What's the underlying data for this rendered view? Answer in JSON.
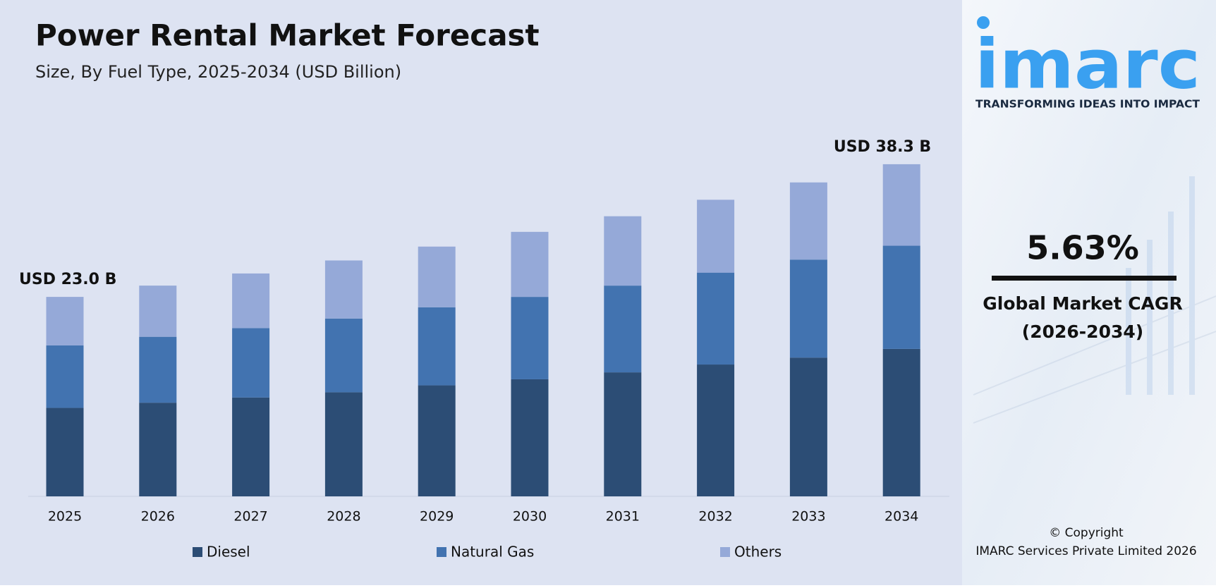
{
  "chart_data": {
    "type": "stacked_bar",
    "title": "Power Rental Market Forecast",
    "subtitle": "Size, By Fuel Type, 2025-2034 (USD Billion)",
    "categories": [
      "2025",
      "2026",
      "2027",
      "2028",
      "2029",
      "2030",
      "2031",
      "2032",
      "2033",
      "2034"
    ],
    "series": [
      {
        "name": "Diesel",
        "color": "#2c4d75",
        "values": [
          10.2,
          10.8,
          11.4,
          12.0,
          12.8,
          13.5,
          14.3,
          15.2,
          16.0,
          17.0
        ]
      },
      {
        "name": "Natural Gas",
        "color": "#4273b0",
        "values": [
          7.2,
          7.6,
          8.0,
          8.5,
          9.0,
          9.5,
          10.0,
          10.6,
          11.3,
          11.9
        ]
      },
      {
        "name": "Others",
        "color": "#95a9d8",
        "values": [
          5.6,
          5.9,
          6.3,
          6.7,
          7.0,
          7.5,
          8.0,
          8.4,
          8.9,
          9.4
        ]
      }
    ],
    "annotations": [
      {
        "x": "2025",
        "value": 23.0,
        "label": "USD 23.0 B"
      },
      {
        "x": "2034",
        "value": 38.3,
        "label": "USD 38.3 B"
      }
    ],
    "ylim": [
      0,
      40
    ],
    "grid": false,
    "legend": "bottom"
  },
  "sidebar": {
    "logo": "imarc",
    "tagline": "TRANSFORMING IDEAS INTO IMPACT",
    "cagr": "5.63%",
    "cagr_label": "Global Market CAGR",
    "cagr_period": "(2026-2034)",
    "copyright": "© Copyright",
    "company": "IMARC Services Private Limited 2026"
  }
}
